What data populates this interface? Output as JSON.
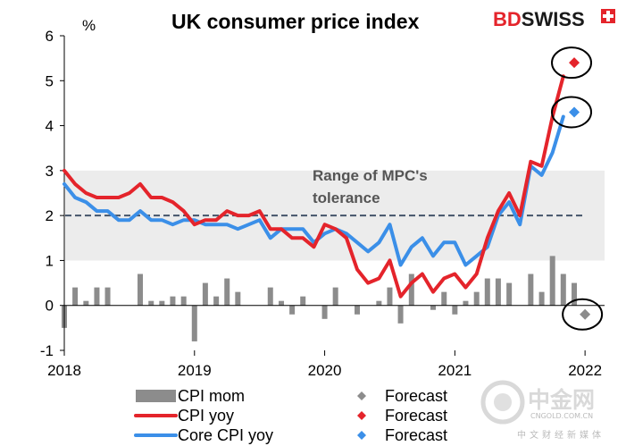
{
  "chart_data": {
    "type": "line",
    "title": "UK consumer price index",
    "ylabel": "%",
    "ylim": [
      -1,
      6
    ],
    "yticks": [
      "6",
      "5",
      "4",
      "3",
      "2",
      "1",
      "0",
      "-1"
    ],
    "ytick_values": [
      6,
      5,
      4,
      3,
      2,
      1,
      0,
      -1
    ],
    "xticks": [
      "2018",
      "2019",
      "2020",
      "2021",
      "2022"
    ],
    "xtick_values": [
      2018,
      2019,
      2020,
      2021,
      2022
    ],
    "xlim": [
      2018,
      2022.15
    ],
    "tolerance_band": {
      "label_line1": "Range of MPC's",
      "label_line2": "tolerance",
      "low": 1,
      "high": 3,
      "target": 2
    },
    "series": [
      {
        "name": "CPI mom",
        "kind": "bar",
        "color": "#8c8c8c",
        "x": [
          2018.0,
          2018.083,
          2018.167,
          2018.25,
          2018.333,
          2018.417,
          2018.5,
          2018.583,
          2018.667,
          2018.75,
          2018.833,
          2018.917,
          2019.0,
          2019.083,
          2019.167,
          2019.25,
          2019.333,
          2019.417,
          2019.5,
          2019.583,
          2019.667,
          2019.75,
          2019.833,
          2019.917,
          2020.0,
          2020.083,
          2020.167,
          2020.25,
          2020.333,
          2020.417,
          2020.5,
          2020.583,
          2020.667,
          2020.75,
          2020.833,
          2020.917,
          2021.0,
          2021.083,
          2021.167,
          2021.25,
          2021.333,
          2021.417,
          2021.5,
          2021.583,
          2021.667,
          2021.75,
          2021.833,
          2021.917
        ],
        "values": [
          -0.5,
          0.4,
          0.1,
          0.4,
          0.4,
          0.0,
          0.0,
          0.7,
          0.1,
          0.1,
          0.2,
          0.2,
          -0.8,
          0.5,
          0.2,
          0.6,
          0.3,
          0.0,
          0.0,
          0.4,
          0.1,
          -0.2,
          0.2,
          0.0,
          -0.3,
          0.4,
          0.0,
          -0.2,
          0.0,
          0.1,
          0.4,
          -0.4,
          0.7,
          0.0,
          -0.1,
          0.3,
          -0.2,
          0.1,
          0.3,
          0.6,
          0.6,
          0.5,
          0.0,
          0.7,
          0.3,
          1.1,
          0.7,
          0.5
        ]
      },
      {
        "name": "CPI yoy",
        "kind": "line",
        "color": "#e4242b",
        "x": [
          2018.0,
          2018.083,
          2018.167,
          2018.25,
          2018.333,
          2018.417,
          2018.5,
          2018.583,
          2018.667,
          2018.75,
          2018.833,
          2018.917,
          2019.0,
          2019.083,
          2019.167,
          2019.25,
          2019.333,
          2019.417,
          2019.5,
          2019.583,
          2019.667,
          2019.75,
          2019.833,
          2019.917,
          2020.0,
          2020.083,
          2020.167,
          2020.25,
          2020.333,
          2020.417,
          2020.5,
          2020.583,
          2020.667,
          2020.75,
          2020.833,
          2020.917,
          2021.0,
          2021.083,
          2021.167,
          2021.25,
          2021.333,
          2021.417,
          2021.5,
          2021.583,
          2021.667,
          2021.75,
          2021.833
        ],
        "values": [
          3.0,
          2.7,
          2.5,
          2.4,
          2.4,
          2.4,
          2.5,
          2.7,
          2.4,
          2.4,
          2.3,
          2.1,
          1.8,
          1.9,
          1.9,
          2.1,
          2.0,
          2.0,
          2.1,
          1.7,
          1.7,
          1.5,
          1.5,
          1.3,
          1.8,
          1.7,
          1.5,
          0.8,
          0.5,
          0.6,
          1.0,
          0.2,
          0.5,
          0.7,
          0.3,
          0.6,
          0.7,
          0.4,
          0.7,
          1.5,
          2.1,
          2.5,
          2.0,
          3.2,
          3.1,
          4.2,
          5.1
        ]
      },
      {
        "name": "Core CPI yoy",
        "kind": "line",
        "color": "#3b8fe8",
        "x": [
          2018.0,
          2018.083,
          2018.167,
          2018.25,
          2018.333,
          2018.417,
          2018.5,
          2018.583,
          2018.667,
          2018.75,
          2018.833,
          2018.917,
          2019.0,
          2019.083,
          2019.167,
          2019.25,
          2019.333,
          2019.417,
          2019.5,
          2019.583,
          2019.667,
          2019.75,
          2019.833,
          2019.917,
          2020.0,
          2020.083,
          2020.167,
          2020.25,
          2020.333,
          2020.417,
          2020.5,
          2020.583,
          2020.667,
          2020.75,
          2020.833,
          2020.917,
          2021.0,
          2021.083,
          2021.167,
          2021.25,
          2021.333,
          2021.417,
          2021.5,
          2021.583,
          2021.667,
          2021.75,
          2021.833
        ],
        "values": [
          2.7,
          2.4,
          2.3,
          2.1,
          2.1,
          1.9,
          1.9,
          2.1,
          1.9,
          1.9,
          1.8,
          1.9,
          1.9,
          1.8,
          1.8,
          1.8,
          1.7,
          1.8,
          1.9,
          1.5,
          1.7,
          1.7,
          1.7,
          1.4,
          1.6,
          1.7,
          1.6,
          1.4,
          1.2,
          1.4,
          1.8,
          0.9,
          1.3,
          1.5,
          1.1,
          1.4,
          1.4,
          0.9,
          1.1,
          1.3,
          2.0,
          2.3,
          1.8,
          3.1,
          2.9,
          3.4,
          4.2
        ]
      }
    ],
    "forecasts": [
      {
        "name": "Forecast",
        "for": "CPI mom",
        "x": 2022.0,
        "value": -0.2,
        "color": "#8c8c8c"
      },
      {
        "name": "Forecast",
        "for": "CPI yoy",
        "x": 2021.917,
        "value": 5.4,
        "color": "#e4242b"
      },
      {
        "name": "Forecast",
        "for": "Core CPI yoy",
        "x": 2021.917,
        "value": 4.3,
        "color": "#3b8fe8"
      }
    ]
  },
  "legend": [
    {
      "series_label": "CPI mom",
      "forecast_label": "Forecast",
      "color": "#8c8c8c",
      "kind": "bar"
    },
    {
      "series_label": "CPI yoy",
      "forecast_label": "Forecast",
      "color": "#e4242b",
      "kind": "line"
    },
    {
      "series_label": "Core CPI yoy",
      "forecast_label": "Forecast",
      "color": "#3b8fe8",
      "kind": "line"
    }
  ],
  "brand": {
    "part1": "BD",
    "part2": "SWISS",
    "part1_color": "#e4242b",
    "part2_color": "#1a1a1a",
    "icon": "swiss-cross-icon"
  },
  "watermark": {
    "name": "中金网",
    "domain": "CNGOLD.COM.CN",
    "tagline": "中文财经新媒体",
    "icon": "gold-logo-icon"
  }
}
